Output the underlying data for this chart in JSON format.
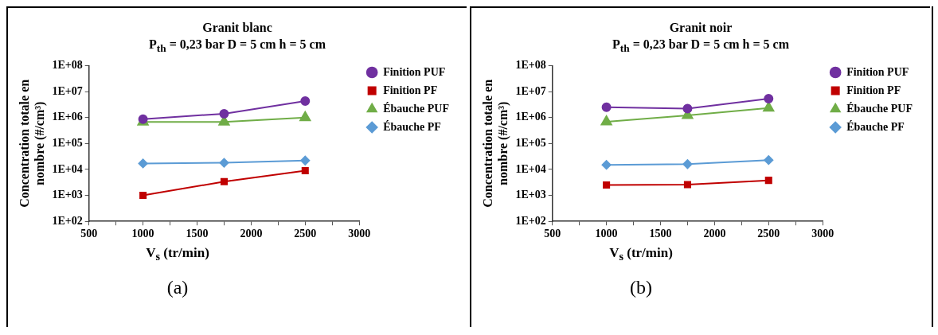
{
  "chart_data": [
    {
      "type": "line",
      "title": "Granit blanc",
      "subtitle": "P$_{th}$ = 0,23 bar D = 5 cm h = 5 cm",
      "xlabel": "V$_{s}$ (tr/min)",
      "ylabel": "Concentration totale en nombre (#/cm³)",
      "annotations": [
        "(a)"
      ],
      "x": [
        1000,
        1750,
        2500
      ],
      "log": "y",
      "grid": false,
      "legend": "right",
      "line_style": "solid",
      "xlim": [
        500,
        3000
      ],
      "xticks": [
        500,
        {
          "value": 750,
          "label": null
        },
        1000,
        {
          "value": 1250,
          "label": null
        },
        1500,
        {
          "value": 1750,
          "label": null
        },
        2000,
        {
          "value": 2250,
          "label": null
        },
        2500,
        {
          "value": 2750,
          "label": null
        },
        3000
      ],
      "ylim": [
        100,
        100000000
      ],
      "yticks": [
        {
          "value": 100,
          "label": "1E+02"
        },
        {
          "value": 1000,
          "label": "1E+03"
        },
        {
          "value": 10000,
          "label": "1E+04"
        },
        {
          "value": 100000,
          "label": "1E+05"
        },
        {
          "value": 1000000,
          "label": "1E+06"
        },
        {
          "value": 10000000,
          "label": "1E+07"
        },
        {
          "value": 100000000,
          "label": "1E+08"
        }
      ],
      "series": [
        {
          "name": "Finition PUF",
          "color": "#7030a0",
          "marker": "circle",
          "values": [
            870000,
            1400000,
            4300000
          ]
        },
        {
          "name": "Finition PF",
          "color": "#c00000",
          "marker": "square",
          "values": [
            1000,
            3400,
            8900
          ]
        },
        {
          "name": "Ébauche PUF",
          "color": "#70ad47",
          "marker": "triangle",
          "values": [
            670000,
            680000,
            1000000
          ]
        },
        {
          "name": "Ébauche PF",
          "color": "#5b9bd5",
          "marker": "diamond",
          "values": [
            17000,
            18000,
            22000
          ]
        }
      ]
    },
    {
      "type": "line",
      "title": "Granit noir",
      "subtitle": "P$_{th}$ = 0,23 bar D = 5 cm h = 5 cm",
      "xlabel": "V$_{s}$ (tr/min)",
      "ylabel": "Concentration totale en nombre (#/cm³)",
      "annotations": [
        "(b)"
      ],
      "x": [
        1000,
        1750,
        2500
      ],
      "log": "y",
      "grid": false,
      "legend": "right",
      "line_style": "solid",
      "xlim": [
        500,
        3000
      ],
      "xticks": [
        500,
        {
          "value": 750,
          "label": null
        },
        1000,
        {
          "value": 1250,
          "label": null
        },
        1500,
        {
          "value": 1750,
          "label": null
        },
        2000,
        {
          "value": 2250,
          "label": null
        },
        2500,
        {
          "value": 2750,
          "label": null
        },
        3000
      ],
      "ylim": [
        100,
        100000000
      ],
      "yticks": [
        {
          "value": 100,
          "label": "1E+02"
        },
        {
          "value": 1000,
          "label": "1E+03"
        },
        {
          "value": 10000,
          "label": "1E+04"
        },
        {
          "value": 100000,
          "label": "1E+05"
        },
        {
          "value": 1000000,
          "label": "1E+06"
        },
        {
          "value": 10000000,
          "label": "1E+07"
        },
        {
          "value": 100000000,
          "label": "1E+08"
        }
      ],
      "series": [
        {
          "name": "Finition PUF",
          "color": "#7030a0",
          "marker": "circle",
          "values": [
            2500000,
            2200000,
            5300000
          ]
        },
        {
          "name": "Finition PF",
          "color": "#c00000",
          "marker": "square",
          "values": [
            2500,
            2600,
            3800
          ]
        },
        {
          "name": "Ébauche PUF",
          "color": "#70ad47",
          "marker": "triangle",
          "values": [
            690000,
            1200000,
            2300000
          ]
        },
        {
          "name": "Ébauche PF",
          "color": "#5b9bd5",
          "marker": "diamond",
          "values": [
            15000,
            16000,
            23000
          ]
        }
      ]
    }
  ]
}
